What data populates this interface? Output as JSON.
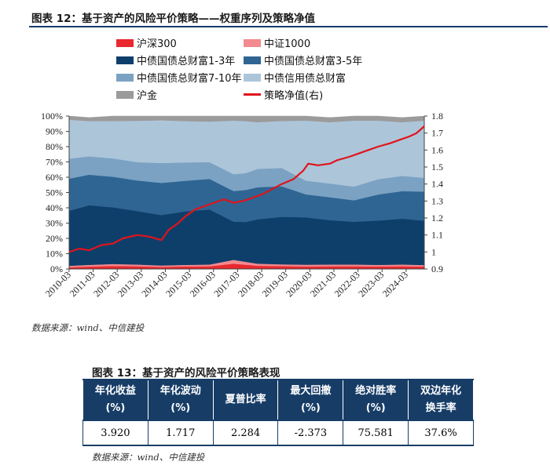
{
  "figure": {
    "title": "图表 12：基于资产的风险平价策略——权重序列及策略净值",
    "source": "数据来源：wind、中信建投"
  },
  "chart_data": {
    "type": "area",
    "title": "图表 12：基于资产的风险平价策略——权重序列及策略净值",
    "x_ticks": [
      "2010-03",
      "2011-03",
      "2012-03",
      "2013-03",
      "2014-03",
      "2015-03",
      "2016-03",
      "2017-03",
      "2018-03",
      "2019-03",
      "2020-03",
      "2021-03",
      "2022-03",
      "2023-03",
      "2024-03"
    ],
    "x_range": [
      2010.17,
      2024.92
    ],
    "left_axis": {
      "ticks": [
        "0%",
        "10%",
        "20%",
        "30%",
        "40%",
        "50%",
        "60%",
        "70%",
        "80%",
        "90%",
        "100%"
      ],
      "min": 0,
      "max": 100,
      "unit": "%"
    },
    "right_axis": {
      "ticks": [
        "0.9",
        "1",
        "1.1",
        "1.2",
        "1.3",
        "1.4",
        "1.5",
        "1.6",
        "1.7",
        "1.8"
      ],
      "min": 0.9,
      "max": 1.8
    },
    "series_order_bottom_to_top": [
      "沪深300",
      "中证1000",
      "中债国债总财富1-3年",
      "中债国债总财富3-5年",
      "中债国债总财富7-10年",
      "中债信用债总财富",
      "沪金"
    ],
    "x": [
      2010.17,
      2011.0,
      2012.0,
      2013.0,
      2014.0,
      2015.0,
      2016.0,
      2017.0,
      2017.5,
      2018.0,
      2019.0,
      2020.0,
      2021.0,
      2022.0,
      2023.0,
      2024.0,
      2024.92
    ],
    "series": [
      {
        "name": "沪深300",
        "color": "#e8292e",
        "values": [
          1.2,
          1.6,
          2.0,
          1.8,
          1.4,
          1.7,
          1.8,
          3.5,
          2.8,
          2.1,
          1.9,
          1.7,
          1.8,
          1.8,
          1.7,
          1.8,
          1.6
        ]
      },
      {
        "name": "中证1000",
        "color": "#f28a8f",
        "values": [
          0.9,
          1.1,
          1.3,
          1.1,
          0.9,
          1.0,
          1.1,
          2.5,
          1.9,
          1.4,
          1.2,
          1.1,
          1.1,
          1.1,
          1.0,
          1.1,
          1.0
        ]
      },
      {
        "name": "中债国债总财富1-3年",
        "color": "#0e3f6b",
        "values": [
          36,
          39,
          37,
          35,
          33,
          35,
          36,
          25,
          26,
          29,
          31,
          31,
          29,
          28,
          29,
          30,
          29
        ]
      },
      {
        "name": "中债国债总财富3-5年",
        "color": "#2f6593",
        "values": [
          21,
          20,
          20,
          20,
          21,
          20,
          20,
          20,
          21,
          21,
          20,
          15,
          15,
          14,
          17,
          18,
          19
        ]
      },
      {
        "name": "中债国债总财富7-10年",
        "color": "#7ba2c3",
        "values": [
          13,
          12,
          12,
          12,
          13,
          12,
          11,
          11,
          11,
          12,
          12,
          9,
          9,
          9,
          10,
          10,
          9
        ]
      },
      {
        "name": "中债信用债总财富",
        "color": "#adc5d9",
        "values": [
          25.5,
          23,
          24.5,
          27,
          28,
          27,
          26.5,
          35,
          34,
          30.5,
          30.7,
          39.2,
          40.1,
          43.1,
          38.3,
          35.1,
          37.4
        ]
      },
      {
        "name": "沪金",
        "color": "#9b9b9b",
        "values": [
          2.4,
          2.3,
          3.2,
          3.1,
          2.8,
          3.3,
          3.6,
          3.0,
          3.3,
          4.0,
          3.2,
          3.0,
          3.0,
          3.0,
          3.0,
          3.0,
          3.0
        ]
      },
      {
        "name": "策略净值(右)",
        "axis": "right",
        "type": "line",
        "color": "#e0141b",
        "x": [
          2010.17,
          2010.6,
          2011.0,
          2011.5,
          2012.0,
          2012.4,
          2013.0,
          2013.5,
          2014.0,
          2014.3,
          2014.7,
          2015.0,
          2015.4,
          2015.8,
          2016.2,
          2016.6,
          2017.0,
          2017.4,
          2017.8,
          2018.2,
          2018.6,
          2019.0,
          2019.5,
          2019.9,
          2020.1,
          2020.5,
          2021.0,
          2021.3,
          2021.8,
          2022.2,
          2022.6,
          2023.0,
          2023.5,
          2023.9,
          2024.3,
          2024.6,
          2024.92
        ],
        "values": [
          1.0,
          1.02,
          1.01,
          1.04,
          1.05,
          1.08,
          1.1,
          1.09,
          1.07,
          1.13,
          1.17,
          1.21,
          1.25,
          1.27,
          1.29,
          1.31,
          1.29,
          1.3,
          1.32,
          1.34,
          1.37,
          1.4,
          1.43,
          1.48,
          1.52,
          1.51,
          1.52,
          1.54,
          1.56,
          1.58,
          1.6,
          1.62,
          1.64,
          1.66,
          1.68,
          1.7,
          1.74
        ]
      }
    ]
  },
  "legend": [
    {
      "label": "沪深300",
      "color": "#e8292e",
      "kind": "box"
    },
    {
      "label": "中证1000",
      "color": "#f28a8f",
      "kind": "box"
    },
    {
      "label": "中债国债总财富1-3年",
      "color": "#0e3f6b",
      "kind": "box"
    },
    {
      "label": "中债国债总财富3-5年",
      "color": "#2f6593",
      "kind": "box"
    },
    {
      "label": "中债国债总财富7-10年",
      "color": "#7ba2c3",
      "kind": "box"
    },
    {
      "label": "中债信用债总财富",
      "color": "#adc5d9",
      "kind": "box"
    },
    {
      "label": "沪金",
      "color": "#9b9b9b",
      "kind": "box"
    },
    {
      "label": "策略净值(右)",
      "color": "#e0141b",
      "kind": "line"
    }
  ],
  "table": {
    "title": "图表 13：基于资产的风险平价策略表现",
    "headers": [
      {
        "line1": "年化收益",
        "line2": "(%)"
      },
      {
        "line1": "年化波动",
        "line2": "(%)"
      },
      {
        "line1": "夏普比率",
        "line2": ""
      },
      {
        "line1": "最大回撤",
        "line2": "(%)"
      },
      {
        "line1": "绝对胜率",
        "line2": "(%)"
      },
      {
        "line1": "双边年化",
        "line2": "换手率"
      }
    ],
    "values": [
      "3.920",
      "1.717",
      "2.284",
      "-2.373",
      "75.581",
      "37.6%"
    ],
    "source": "数据来源：wind、中信建投"
  }
}
